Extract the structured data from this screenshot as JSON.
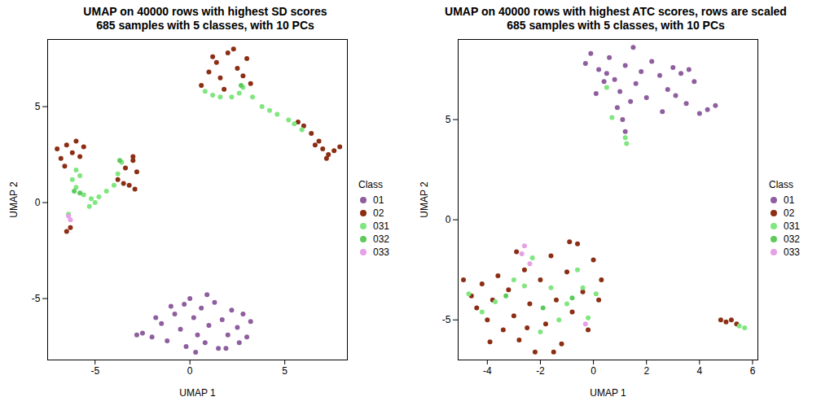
{
  "chart_data": [
    {
      "type": "scatter",
      "title": "UMAP on 40000 rows with highest SD scores",
      "subtitle": "685 samples with 5 classes, with 10 PCs",
      "x_label": "UMAP 1",
      "y_label": "UMAP 2",
      "legend_title": "Class",
      "legend": "right",
      "xlim": [
        -7.5,
        8.3
      ],
      "xticks": [
        -5,
        0,
        5
      ],
      "ylim": [
        -8.2,
        8.5
      ],
      "yticks": [
        -5,
        0,
        5
      ],
      "series": [
        {
          "name": "01",
          "color": "#8E5E9E",
          "values": [
            [
              -2.5,
              -6.8
            ],
            [
              -2.0,
              -7.0
            ],
            [
              -1.5,
              -6.3
            ],
            [
              -1.2,
              -7.2
            ],
            [
              -0.8,
              -5.8
            ],
            [
              -0.5,
              -6.6
            ],
            [
              -0.2,
              -7.5
            ],
            [
              0,
              -5.0
            ],
            [
              0.2,
              -6.0
            ],
            [
              0.4,
              -6.9
            ],
            [
              0.6,
              -5.5
            ],
            [
              0.8,
              -7.3
            ],
            [
              1.0,
              -6.4
            ],
            [
              1.3,
              -5.2
            ],
            [
              1.5,
              -7.6
            ],
            [
              1.7,
              -6.1
            ],
            [
              2.0,
              -6.9
            ],
            [
              2.2,
              -5.6
            ],
            [
              2.5,
              -6.5
            ],
            [
              2.8,
              -5.8
            ],
            [
              3.0,
              -7.0
            ],
            [
              3.2,
              -6.2
            ],
            [
              -1.0,
              -5.4
            ],
            [
              -1.8,
              -6.0
            ],
            [
              0.3,
              -7.8
            ],
            [
              1.9,
              -7.6
            ],
            [
              2.6,
              -7.3
            ],
            [
              -2.8,
              -6.9
            ],
            [
              0.9,
              -4.8
            ],
            [
              -0.3,
              -5.3
            ]
          ]
        },
        {
          "name": "02",
          "color": "#8B2E14",
          "values": [
            [
              0.6,
              6.1
            ],
            [
              1.0,
              6.8
            ],
            [
              1.4,
              7.3
            ],
            [
              1.6,
              6.5
            ],
            [
              2.0,
              7.8
            ],
            [
              2.3,
              8.0
            ],
            [
              2.5,
              7.0
            ],
            [
              2.8,
              6.6
            ],
            [
              3.0,
              7.5
            ],
            [
              1.8,
              5.9
            ],
            [
              1.2,
              7.6
            ],
            [
              3.2,
              6.2
            ],
            [
              6.0,
              4.0
            ],
            [
              6.4,
              3.6
            ],
            [
              6.8,
              3.2
            ],
            [
              7.0,
              2.8
            ],
            [
              7.3,
              2.5
            ],
            [
              7.6,
              2.7
            ],
            [
              7.9,
              2.9
            ],
            [
              6.6,
              3.0
            ],
            [
              7.2,
              2.3
            ],
            [
              5.7,
              4.2
            ],
            [
              -7.0,
              2.8
            ],
            [
              -6.8,
              2.3
            ],
            [
              -6.5,
              3.0
            ],
            [
              -6.2,
              2.6
            ],
            [
              -6.0,
              3.2
            ],
            [
              -5.8,
              2.4
            ],
            [
              -6.6,
              1.9
            ],
            [
              -5.6,
              2.9
            ],
            [
              -3.4,
              1.8
            ],
            [
              -3.0,
              2.2
            ],
            [
              -2.8,
              1.6
            ],
            [
              -3.2,
              0.9
            ],
            [
              -3.5,
              1.0
            ],
            [
              -2.9,
              0.7
            ],
            [
              -3.8,
              1.2
            ],
            [
              -3.0,
              2.4
            ],
            [
              -6.5,
              -1.5
            ],
            [
              -6.3,
              -1.3
            ]
          ]
        },
        {
          "name": "031",
          "color": "#80E680",
          "values": [
            [
              0.8,
              5.8
            ],
            [
              1.2,
              5.6
            ],
            [
              1.6,
              5.5
            ],
            [
              2.2,
              5.5
            ],
            [
              2.6,
              5.7
            ],
            [
              2.8,
              6.0
            ],
            [
              3.3,
              5.5
            ],
            [
              3.8,
              5.0
            ],
            [
              4.2,
              4.8
            ],
            [
              4.6,
              4.6
            ],
            [
              5.2,
              4.3
            ],
            [
              5.5,
              4.1
            ],
            [
              5.9,
              3.8
            ],
            [
              -6.0,
              1.7
            ],
            [
              -5.8,
              1.4
            ],
            [
              -6.2,
              1.2
            ],
            [
              -6.0,
              0.8
            ],
            [
              -5.6,
              0.4
            ],
            [
              -5.2,
              0.2
            ],
            [
              -5.0,
              0.0
            ],
            [
              -4.8,
              0.3
            ],
            [
              -4.4,
              0.6
            ],
            [
              -4.0,
              0.9
            ],
            [
              -3.8,
              1.5
            ],
            [
              -3.6,
              2.1
            ],
            [
              -6.4,
              -0.6
            ],
            [
              -5.3,
              -0.2
            ]
          ]
        },
        {
          "name": "032",
          "color": "#5CCB5C",
          "values": [
            [
              -6.1,
              0.6
            ],
            [
              -5.8,
              0.5
            ],
            [
              -3.7,
              2.2
            ],
            [
              2.7,
              6.1
            ]
          ]
        },
        {
          "name": "033",
          "color": "#E6A0E6",
          "values": [
            [
              -6.3,
              -0.9
            ],
            [
              -6.4,
              -0.7
            ]
          ]
        }
      ]
    },
    {
      "type": "scatter",
      "title": "UMAP on 40000 rows with highest ATC scores, rows are scaled",
      "subtitle": "685 samples with 5 classes, with 10 PCs",
      "x_label": "UMAP 1",
      "y_label": "UMAP 2",
      "legend_title": "Class",
      "legend": "right",
      "xlim": [
        -5.1,
        6.2
      ],
      "xticks": [
        -4,
        -2,
        0,
        2,
        4,
        6
      ],
      "ylim": [
        -7.0,
        9.0
      ],
      "yticks": [
        -5,
        0,
        5
      ],
      "series": [
        {
          "name": "01",
          "color": "#8E5E9E",
          "values": [
            [
              -0.3,
              7.8
            ],
            [
              -0.1,
              8.3
            ],
            [
              0.2,
              7.5
            ],
            [
              0.4,
              6.9
            ],
            [
              0.6,
              8.1
            ],
            [
              0.8,
              7.0
            ],
            [
              1.0,
              6.4
            ],
            [
              1.2,
              7.7
            ],
            [
              1.4,
              5.9
            ],
            [
              1.6,
              6.8
            ],
            [
              1.8,
              7.4
            ],
            [
              2.0,
              6.1
            ],
            [
              2.2,
              7.9
            ],
            [
              2.5,
              7.2
            ],
            [
              2.8,
              6.5
            ],
            [
              3.0,
              7.6
            ],
            [
              3.3,
              7.3
            ],
            [
              3.6,
              7.5
            ],
            [
              3.8,
              6.9
            ],
            [
              3.5,
              5.8
            ],
            [
              4.0,
              5.3
            ],
            [
              4.3,
              5.5
            ],
            [
              4.6,
              5.7
            ],
            [
              1.1,
              5.0
            ],
            [
              1.2,
              4.4
            ],
            [
              0.9,
              5.6
            ],
            [
              2.6,
              5.4
            ],
            [
              3.1,
              6.2
            ],
            [
              0.1,
              6.3
            ],
            [
              1.5,
              8.6
            ],
            [
              0.5,
              7.3
            ]
          ]
        },
        {
          "name": "02",
          "color": "#8B2E14",
          "values": [
            [
              -4.9,
              -3.0
            ],
            [
              -4.6,
              -3.8
            ],
            [
              -4.4,
              -4.4
            ],
            [
              -4.2,
              -3.2
            ],
            [
              -4.0,
              -5.0
            ],
            [
              -3.8,
              -4.0
            ],
            [
              -3.6,
              -2.8
            ],
            [
              -3.4,
              -5.5
            ],
            [
              -3.2,
              -3.5
            ],
            [
              -3.0,
              -4.8
            ],
            [
              -2.8,
              -6.0
            ],
            [
              -2.6,
              -2.5
            ],
            [
              -2.4,
              -4.2
            ],
            [
              -2.2,
              -6.6
            ],
            [
              -2.0,
              -3.0
            ],
            [
              -1.8,
              -5.2
            ],
            [
              -1.6,
              -1.8
            ],
            [
              -1.4,
              -4.0
            ],
            [
              -1.2,
              -6.2
            ],
            [
              -1.0,
              -2.6
            ],
            [
              -0.8,
              -4.6
            ],
            [
              -0.6,
              -1.2
            ],
            [
              -0.4,
              -3.6
            ],
            [
              -0.2,
              -5.5
            ],
            [
              0.0,
              -2.0
            ],
            [
              0.2,
              -4.0
            ],
            [
              0.3,
              -3.0
            ],
            [
              -1.5,
              -6.6
            ],
            [
              -2.9,
              -1.6
            ],
            [
              -3.9,
              -6.1
            ],
            [
              -0.9,
              -1.1
            ],
            [
              -2.5,
              -5.4
            ],
            [
              4.8,
              -5.0
            ],
            [
              5.0,
              -5.1
            ],
            [
              5.2,
              -5.0
            ],
            [
              5.4,
              -5.2
            ]
          ]
        },
        {
          "name": "031",
          "color": "#80E680",
          "values": [
            [
              1.25,
              3.8
            ],
            [
              1.2,
              4.1
            ],
            [
              0.5,
              6.6
            ],
            [
              0.7,
              5.1
            ],
            [
              -4.7,
              -3.7
            ],
            [
              -4.2,
              -4.6
            ],
            [
              -3.7,
              -4.1
            ],
            [
              -3.0,
              -3.0
            ],
            [
              -2.6,
              -3.3
            ],
            [
              -2.0,
              -5.6
            ],
            [
              -1.6,
              -3.4
            ],
            [
              -1.3,
              -5.0
            ],
            [
              -1.0,
              -4.2
            ],
            [
              -0.6,
              -2.5
            ],
            [
              -0.4,
              -3.4
            ],
            [
              -0.2,
              -4.9
            ],
            [
              0.1,
              -3.7
            ],
            [
              5.5,
              -5.3
            ],
            [
              5.7,
              -5.4
            ],
            [
              -2.3,
              -1.9
            ]
          ]
        },
        {
          "name": "032",
          "color": "#5CCB5C",
          "values": [
            [
              -1.9,
              -4.4
            ],
            [
              -0.8,
              -3.9
            ],
            [
              -3.3,
              -3.8
            ]
          ]
        },
        {
          "name": "033",
          "color": "#E6A0E6",
          "values": [
            [
              -2.6,
              -1.3
            ],
            [
              -2.7,
              -1.7
            ],
            [
              -0.3,
              -5.2
            ],
            [
              -2.4,
              -2.2
            ]
          ]
        }
      ]
    }
  ]
}
